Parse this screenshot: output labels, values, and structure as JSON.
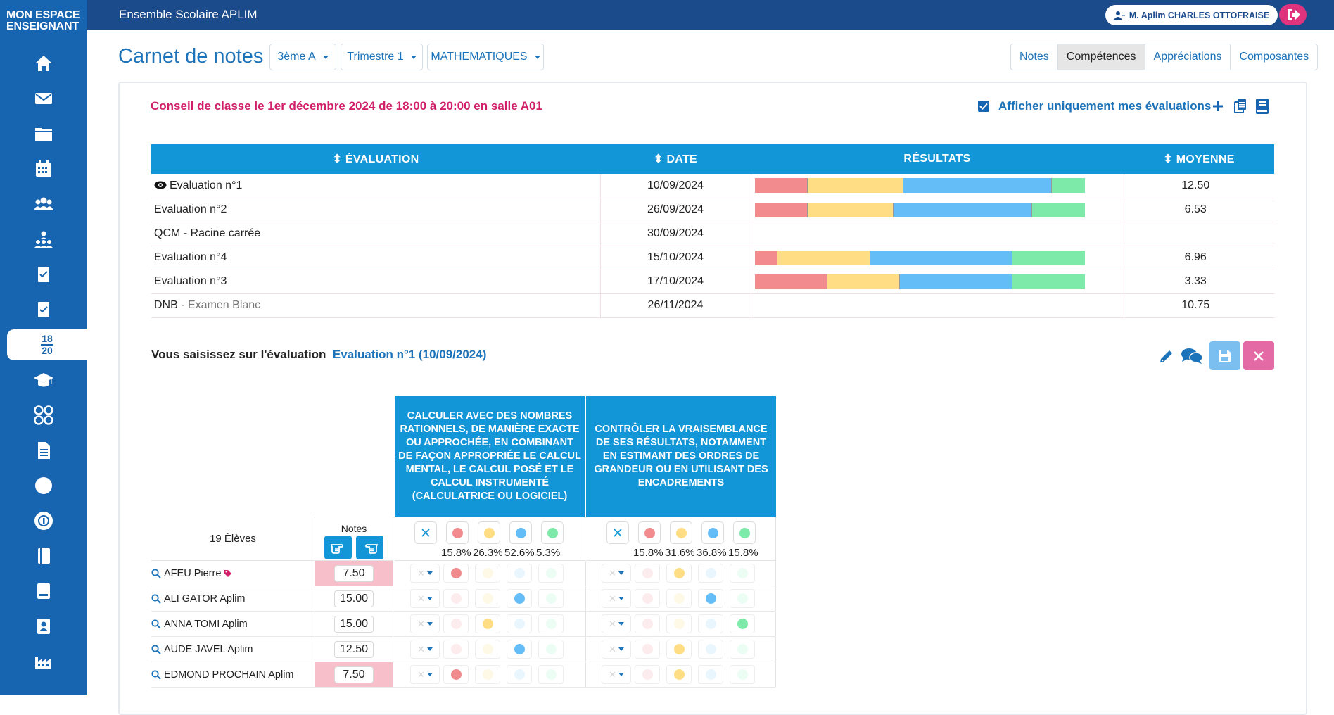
{
  "brand": {
    "line1": "MON ESPACE",
    "line2": "ENSEIGNANT"
  },
  "sidebar": {
    "items": [
      "home-icon",
      "mail-icon",
      "folder-icon",
      "calendar-icon",
      "users-icon",
      "org-icon",
      "checklist-icon",
      "checklist-icon-2",
      "grades",
      "graduation-cap-icon",
      "competencies-icon",
      "document-icon",
      "circle-icon",
      "badge-icon",
      "notebook-icon",
      "book-icon",
      "contact-book-icon",
      "factory-icon"
    ],
    "grades_fraction": {
      "num": "18",
      "den": "20"
    }
  },
  "header": {
    "school": "Ensemble Scolaire APLIM",
    "user": "M. Aplim CHARLES OTTOFRAISE"
  },
  "page": {
    "title": "Carnet de notes"
  },
  "filters": {
    "classe": "3ème A",
    "periode": "Trimestre 1",
    "matiere": "MATHEMATIQUES"
  },
  "tabs": [
    "Notes",
    "Compétences",
    "Appréciations",
    "Composantes"
  ],
  "active_tab": "Compétences",
  "conseil": "Conseil de classe le 1er décembre 2024 de 18:00 à 20:00 en salle A01",
  "filter_checkbox": {
    "label": "Afficher uniquement mes évaluations",
    "checked": true
  },
  "colors": {
    "red": "#f28b8e",
    "yellow": "#fedd84",
    "blue": "#64bdf7",
    "green": "#7eeaa9",
    "accent": "#1296d8",
    "pink": "#d11f6a"
  },
  "evaluations": {
    "headers": {
      "evaluation": "ÉVALUATION",
      "date": "DATE",
      "resultats": "RÉSULTATS",
      "moyenne": "MOYENNE"
    },
    "rows": [
      {
        "name": "Evaluation n°1",
        "sub": "",
        "date": "10/09/2024",
        "dist": [
          16,
          29,
          45,
          10
        ],
        "moyenne": "12.50",
        "viewed": true
      },
      {
        "name": "Evaluation n°2",
        "sub": "",
        "date": "26/09/2024",
        "dist": [
          16,
          26,
          42,
          16
        ],
        "moyenne": "6.53",
        "viewed": false
      },
      {
        "name": "QCM - Racine carrée",
        "sub": "",
        "date": "30/09/2024",
        "dist": [],
        "moyenne": "",
        "viewed": false
      },
      {
        "name": "Evaluation n°4",
        "sub": "",
        "date": "15/10/2024",
        "dist": [
          7,
          28,
          43,
          22
        ],
        "moyenne": "6.96",
        "viewed": false
      },
      {
        "name": "Evaluation n°3",
        "sub": "",
        "date": "17/10/2024",
        "dist": [
          22,
          22,
          34,
          22
        ],
        "moyenne": "3.33",
        "viewed": false
      },
      {
        "name": "DNB",
        "sub": " - Examen Blanc",
        "date": "26/11/2024",
        "dist": [],
        "moyenne": "10.75",
        "viewed": false
      }
    ]
  },
  "saisie": {
    "label": "Vous saisissez sur l'évaluation",
    "evaluation": "Evaluation n°1 (10/09/2024)"
  },
  "competences": [
    {
      "title": "CALCULER AVEC DES NOMBRES RATIONNELS, DE MANIÈRE EXACTE OU APPROCHÉE, EN COMBINANT DE FAÇON APPROPRIÉE LE CALCUL MENTAL, LE CALCUL POSÉ ET LE CALCUL INSTRUMENTÉ (CALCULATRICE OU LOGICIEL)",
      "pcts": [
        "15.8%",
        "26.3%",
        "52.6%",
        "5.3%"
      ]
    },
    {
      "title": "CONTRÔLER LA VRAISEMBLANCE DE SES RÉSULTATS, NOTAMMENT EN ESTIMANT DES ORDRES DE GRANDEUR OU EN UTILISANT DES ENCADREMENTS",
      "pcts": [
        "15.8%",
        "31.6%",
        "36.8%",
        "15.8%"
      ]
    }
  ],
  "students_header": {
    "count": "19 Élèves",
    "notes": "Notes"
  },
  "students": [
    {
      "name": "AFEU Pierre",
      "tag": true,
      "note": "7.50",
      "low": true,
      "c1": 0,
      "c2": 1
    },
    {
      "name": "ALI GATOR Aplim",
      "tag": false,
      "note": "15.00",
      "low": false,
      "c1": 2,
      "c2": 2
    },
    {
      "name": "ANNA TOMI Aplim",
      "tag": false,
      "note": "15.00",
      "low": false,
      "c1": 1,
      "c2": 3
    },
    {
      "name": "AUDE JAVEL Aplim",
      "tag": false,
      "note": "12.50",
      "low": false,
      "c1": 2,
      "c2": 1
    },
    {
      "name": "EDMOND PROCHAIN Aplim",
      "tag": false,
      "note": "7.50",
      "low": true,
      "c1": 0,
      "c2": 1
    }
  ]
}
